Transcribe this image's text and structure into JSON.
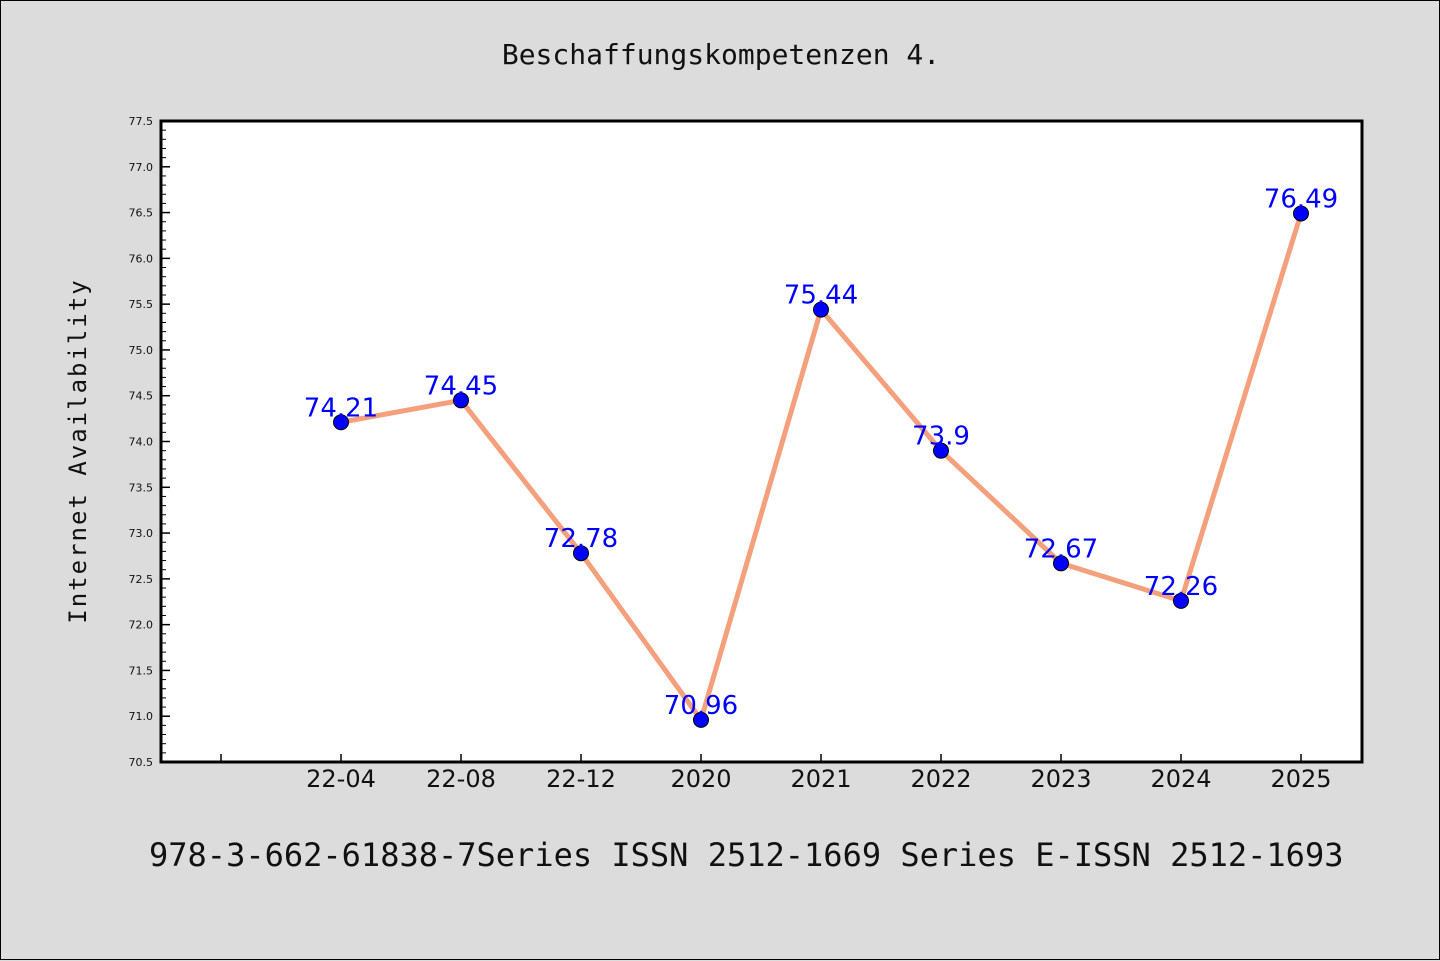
{
  "colors": {
    "background": "#dcdcdc",
    "plot_background": "#ffffff",
    "line": "#f4a07c",
    "marker": "#0000ff",
    "data_label": "#0000ff"
  },
  "footer": "978-3-662-61838-7Series ISSN 2512-1669 Series E-ISSN 2512-1693",
  "chart_data": {
    "type": "line",
    "title": "Beschaffungskompetenzen 4.",
    "xlabel": "",
    "ylabel": "Internet Availability",
    "categories": [
      "22-04",
      "22-08",
      "22-12",
      "2020",
      "2021",
      "2022",
      "2023",
      "2024",
      "2025"
    ],
    "series": [
      {
        "values": [
          74.21,
          74.45,
          72.78,
          70.96,
          75.44,
          73.9,
          72.67,
          72.26,
          76.49
        ]
      }
    ],
    "data_labels": [
      "74.21",
      "74.45",
      "72.78",
      "70.96",
      "75.44",
      "73.9",
      "72.67",
      "72.26",
      "76.49"
    ],
    "yticks": [
      "70.5",
      "71.0",
      "71.5",
      "72.0",
      "72.5",
      "73.0",
      "73.5",
      "74.0",
      "74.5",
      "75.0",
      "75.5",
      "76.0",
      "76.5",
      "77.0",
      "77.5"
    ],
    "ylim": [
      70.5,
      77.5
    ],
    "grid": false,
    "legend": "none"
  }
}
